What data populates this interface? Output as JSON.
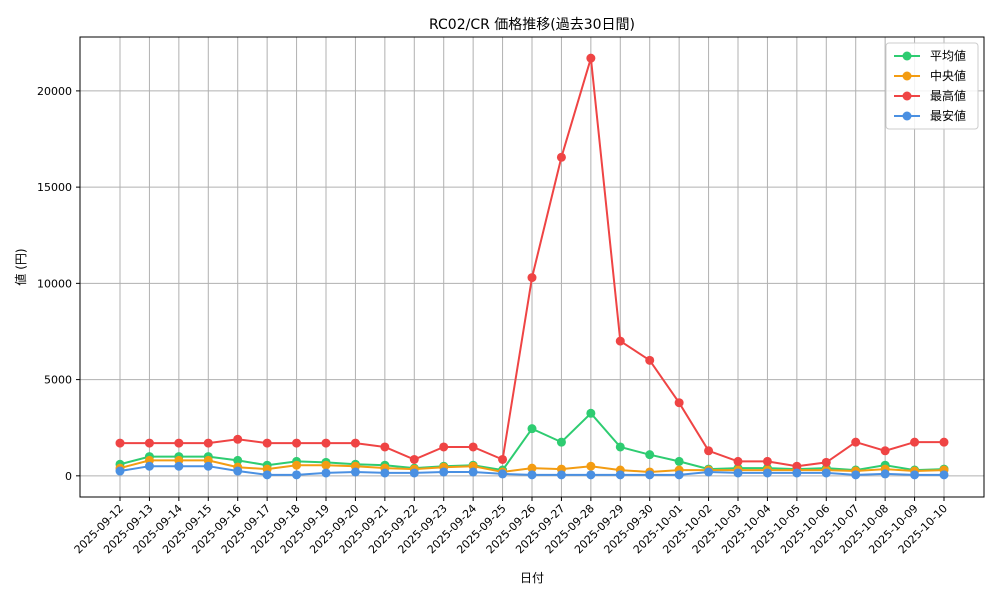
{
  "chart_data": {
    "type": "line",
    "title": "RC02/CR 価格推移(過去30日間)",
    "xlabel": "日付",
    "ylabel": "値 (円)",
    "x": [
      "2025-09-12",
      "2025-09-13",
      "2025-09-14",
      "2025-09-15",
      "2025-09-16",
      "2025-09-17",
      "2025-09-18",
      "2025-09-19",
      "2025-09-20",
      "2025-09-21",
      "2025-09-22",
      "2025-09-23",
      "2025-09-24",
      "2025-09-25",
      "2025-09-26",
      "2025-09-27",
      "2025-09-28",
      "2025-09-29",
      "2025-09-30",
      "2025-10-01",
      "2025-10-02",
      "2025-10-03",
      "2025-10-04",
      "2025-10-05",
      "2025-10-06",
      "2025-10-07",
      "2025-10-08",
      "2025-10-09",
      "2025-10-10"
    ],
    "ylim": [
      -1100,
      22800
    ],
    "yticks": [
      0,
      5000,
      10000,
      15000,
      20000
    ],
    "ytick_labels": [
      "0",
      "5000",
      "10000",
      "15000",
      "20000"
    ],
    "grid": true,
    "legend_position": "top-right",
    "series": [
      {
        "name": "平均値",
        "color": "#2ecc71",
        "values": [
          600,
          1000,
          1000,
          1000,
          800,
          550,
          750,
          700,
          600,
          550,
          400,
          500,
          550,
          300,
          2450,
          1750,
          3250,
          1500,
          1100,
          750,
          350,
          400,
          400,
          350,
          400,
          300,
          550,
          300,
          350
        ]
      },
      {
        "name": "中央値",
        "color": "#f39c12",
        "values": [
          400,
          800,
          800,
          800,
          450,
          350,
          550,
          550,
          500,
          400,
          350,
          450,
          500,
          200,
          400,
          350,
          500,
          300,
          200,
          300,
          300,
          300,
          300,
          300,
          300,
          250,
          350,
          250,
          300
        ]
      },
      {
        "name": "最高値",
        "color": "#ef4444",
        "values": [
          1700,
          1700,
          1700,
          1700,
          1900,
          1700,
          1700,
          1700,
          1700,
          1500,
          850,
          1500,
          1500,
          850,
          10300,
          16550,
          21700,
          7000,
          6000,
          3800,
          1300,
          750,
          750,
          500,
          700,
          1750,
          1300,
          1750,
          1750
        ]
      },
      {
        "name": "最安値",
        "color": "#4a90e2",
        "values": [
          250,
          500,
          500,
          500,
          250,
          50,
          50,
          150,
          200,
          150,
          150,
          200,
          200,
          100,
          50,
          50,
          50,
          50,
          50,
          50,
          200,
          150,
          150,
          150,
          150,
          50,
          100,
          50,
          50
        ]
      }
    ]
  }
}
